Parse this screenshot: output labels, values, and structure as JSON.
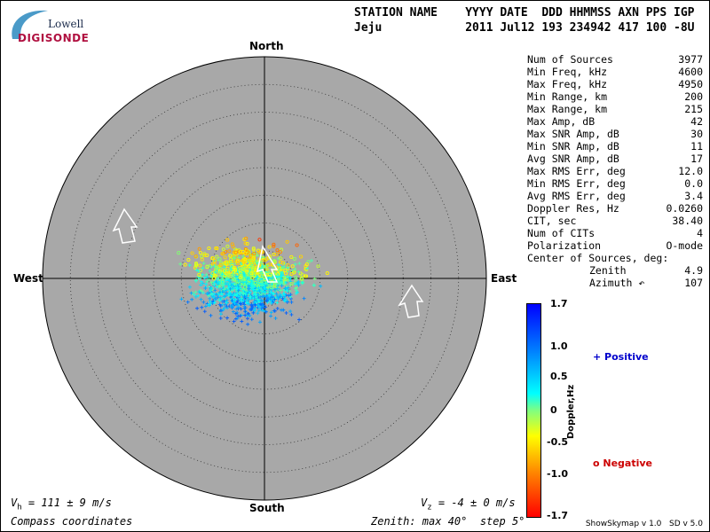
{
  "logo": {
    "line1": "Lowell",
    "line2": "DIGISONDE"
  },
  "header": {
    "line1": "STATION NAME    YYYY DATE  DDD HHMMSS AXN PPS IGP",
    "line2": "Jeju            2011 Jul12 193 234942 417 100 -8U"
  },
  "compass": {
    "north": "North",
    "south": "South",
    "east": "East",
    "west": "West"
  },
  "stats": [
    {
      "label": "Num of Sources",
      "value": "3977"
    },
    {
      "label": "Min Freq, kHz",
      "value": "4600"
    },
    {
      "label": "Max Freq, kHz",
      "value": "4950"
    },
    {
      "label": "Min Range, km",
      "value": "200"
    },
    {
      "label": "Max Range, km",
      "value": "215"
    },
    {
      "label": "Max Amp, dB",
      "value": "42"
    },
    {
      "label": "Max SNR Amp, dB",
      "value": "30"
    },
    {
      "label": "Min SNR Amp, dB",
      "value": "11"
    },
    {
      "label": "Avg SNR Amp, dB",
      "value": "17"
    },
    {
      "label": "Max RMS Err, deg",
      "value": "12.0"
    },
    {
      "label": "Min RMS Err, deg",
      "value": "0.0"
    },
    {
      "label": "Avg RMS Err, deg",
      "value": "3.4"
    },
    {
      "label": "Doppler Res, Hz",
      "value": "0.0260"
    },
    {
      "label": "CIT, sec",
      "value": "38.40"
    },
    {
      "label": "Num of CITs",
      "value": "4"
    },
    {
      "label": "Polarization",
      "value": "O-mode"
    },
    {
      "label": "Center of Sources, deg:",
      "value": ""
    },
    {
      "label": "Zenith",
      "value": "4.9",
      "sub": true
    },
    {
      "label": "Azimuth ↶",
      "value": "107",
      "sub": true
    }
  ],
  "colorbar": {
    "title": "Doppler,Hz",
    "ticks": [
      "1.7",
      "1.0",
      "0.5",
      "0",
      "-0.5",
      "-1.0",
      "-1.7"
    ],
    "colors": [
      "#0000ff",
      "#00ffff",
      "#ffff00",
      "#ff0000"
    ]
  },
  "legend": {
    "positive": "+ Positive",
    "positive_color": "#0000cc",
    "negative": "o Negative",
    "negative_color": "#cc0000"
  },
  "footer": {
    "vh": "V",
    "vh_sub": "h",
    "vh_val": " = 111 ± 9 m/s",
    "vz": "V",
    "vz_sub": "z",
    "vz_val": " = -4 ± 0 m/s",
    "coords": "Compass coordinates",
    "zenith": "Zenith: max 40°  step 5°",
    "version": "ShowSkymap v 1.0   SD v 5.0"
  },
  "plot": {
    "disk_color": "#a8a8a8",
    "max_zenith_deg": 40,
    "step_deg": 5
  }
}
